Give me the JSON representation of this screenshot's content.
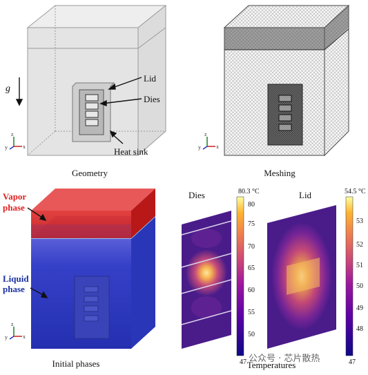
{
  "panels": {
    "geometry": {
      "caption": "Geometry",
      "gravity_label": "g",
      "labels": {
        "lid": "Lid",
        "dies": "Dies",
        "heat_sink": "Heat sink"
      },
      "axes": {
        "y": "y",
        "z": "z",
        "x": "x"
      }
    },
    "meshing": {
      "caption": "Meshing",
      "axes": {
        "y": "y",
        "z": "z",
        "x": "x"
      }
    },
    "initial_phases": {
      "caption": "Initial phases",
      "labels": {
        "vapor": "Vapor\nphase",
        "vapor_line1": "Vapor",
        "vapor_line2": "phase",
        "liquid_line1": "Liquid",
        "liquid_line2": "phase"
      },
      "axes": {
        "y": "y",
        "z": "z",
        "x": "x"
      },
      "colors": {
        "vapor": "#d7282c",
        "liquid": "#2f3fc4",
        "label_red": "#e02020",
        "label_blue": "#1a2fa0"
      }
    },
    "temperatures": {
      "caption": "Temperatures",
      "dies": {
        "title": "Dies",
        "max_label": "80.3 °C",
        "ticks": [
          "80",
          "75",
          "70",
          "65",
          "60",
          "55",
          "50"
        ],
        "min_label": "47"
      },
      "lid": {
        "title": "Lid",
        "max_label": "54.5 °C",
        "ticks": [
          "53",
          "52",
          "51",
          "50",
          "49",
          "48"
        ],
        "min_label": "47"
      }
    }
  },
  "watermark": "公众号 · 芯片散热"
}
